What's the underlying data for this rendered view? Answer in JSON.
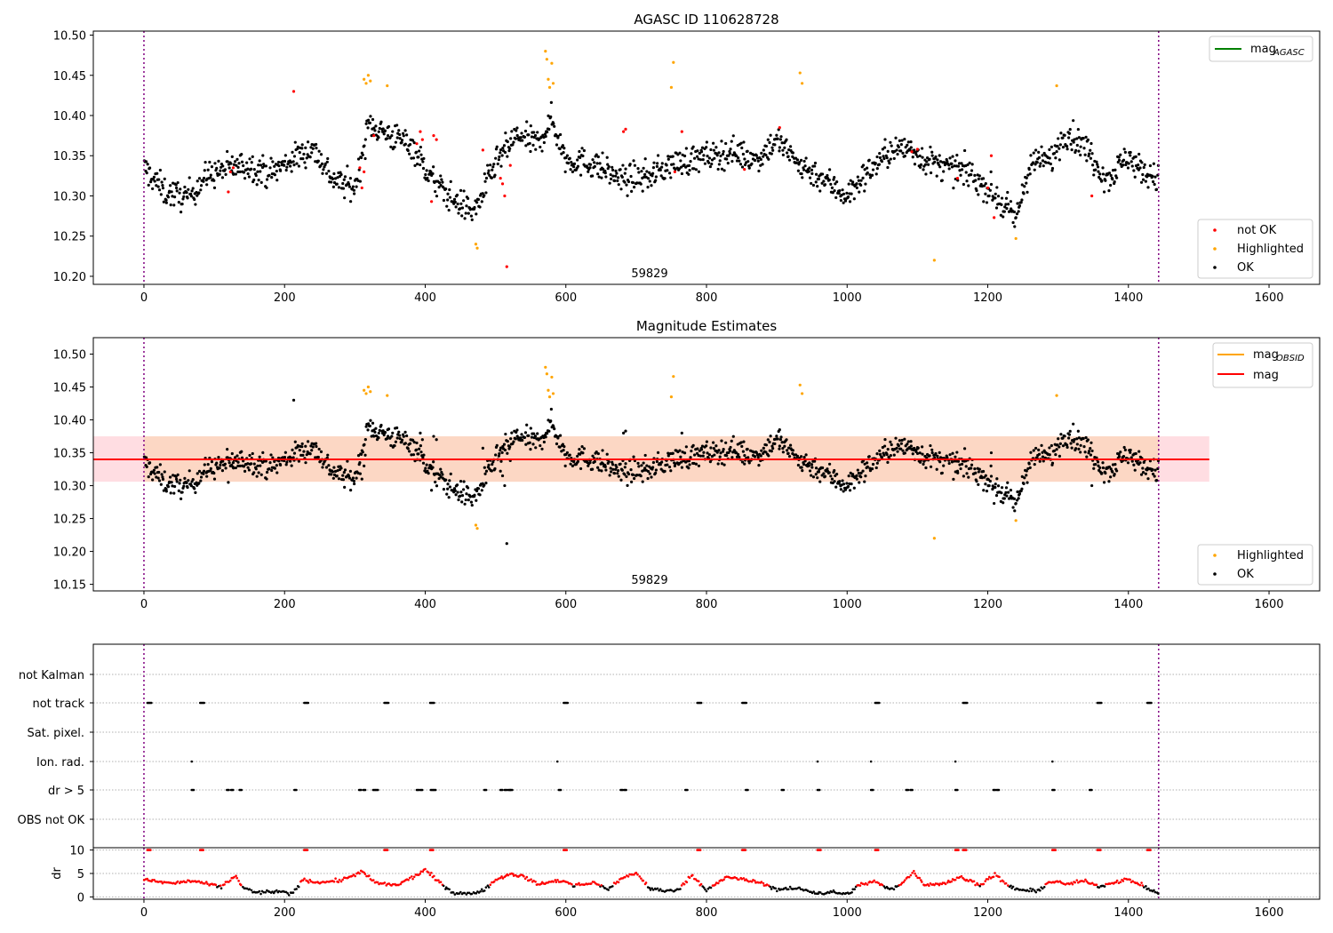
{
  "chart_data": [
    {
      "type": "scatter",
      "title": "AGASC ID 110628728",
      "annotation": "59829",
      "xlim": [
        -72,
        1672
      ],
      "ylim": [
        10.19,
        10.505
      ],
      "xticks": [
        0,
        200,
        400,
        600,
        800,
        1000,
        1200,
        1400,
        1600
      ],
      "yticks": [
        10.2,
        10.25,
        10.3,
        10.35,
        10.4,
        10.45,
        10.5
      ],
      "vlines": [
        0,
        1443
      ],
      "legend_lines": [
        {
          "label_main": "mag",
          "label_sub": "AGASC",
          "color": "#008000"
        }
      ],
      "legend_points": [
        {
          "label": "not OK",
          "color": "#ff0000"
        },
        {
          "label": "Highlighted",
          "color": "#ffa500"
        },
        {
          "label": "OK",
          "color": "#000000"
        }
      ],
      "n_points": 1443,
      "base_curve": [
        [
          0,
          10.335
        ],
        [
          30,
          10.305
        ],
        [
          60,
          10.298
        ],
        [
          90,
          10.325
        ],
        [
          120,
          10.335
        ],
        [
          150,
          10.338
        ],
        [
          180,
          10.328
        ],
        [
          210,
          10.345
        ],
        [
          240,
          10.36
        ],
        [
          270,
          10.32
        ],
        [
          300,
          10.31
        ],
        [
          320,
          10.39
        ],
        [
          350,
          10.375
        ],
        [
          380,
          10.365
        ],
        [
          410,
          10.32
        ],
        [
          440,
          10.295
        ],
        [
          470,
          10.28
        ],
        [
          500,
          10.34
        ],
        [
          530,
          10.375
        ],
        [
          560,
          10.365
        ],
        [
          580,
          10.395
        ],
        [
          600,
          10.345
        ],
        [
          640,
          10.34
        ],
        [
          680,
          10.32
        ],
        [
          720,
          10.325
        ],
        [
          750,
          10.34
        ],
        [
          780,
          10.345
        ],
        [
          810,
          10.35
        ],
        [
          840,
          10.355
        ],
        [
          870,
          10.345
        ],
        [
          900,
          10.37
        ],
        [
          930,
          10.34
        ],
        [
          960,
          10.325
        ],
        [
          1000,
          10.3
        ],
        [
          1030,
          10.33
        ],
        [
          1060,
          10.355
        ],
        [
          1090,
          10.36
        ],
        [
          1110,
          10.345
        ],
        [
          1140,
          10.335
        ],
        [
          1170,
          10.33
        ],
        [
          1200,
          10.31
        ],
        [
          1220,
          10.29
        ],
        [
          1240,
          10.27
        ],
        [
          1260,
          10.34
        ],
        [
          1290,
          10.345
        ],
        [
          1310,
          10.38
        ],
        [
          1340,
          10.36
        ],
        [
          1370,
          10.32
        ],
        [
          1400,
          10.35
        ],
        [
          1420,
          10.33
        ],
        [
          1443,
          10.32
        ]
      ],
      "highlighted_points": [
        [
          313,
          10.445
        ],
        [
          316,
          10.44
        ],
        [
          319,
          10.45
        ],
        [
          322,
          10.443
        ],
        [
          346,
          10.437
        ],
        [
          472,
          10.24
        ],
        [
          474,
          10.235
        ],
        [
          571,
          10.48
        ],
        [
          573,
          10.47
        ],
        [
          575,
          10.445
        ],
        [
          577,
          10.435
        ],
        [
          580,
          10.465
        ],
        [
          582,
          10.44
        ],
        [
          750,
          10.435
        ],
        [
          753,
          10.466
        ],
        [
          933,
          10.453
        ],
        [
          936,
          10.44
        ],
        [
          1124,
          10.22
        ],
        [
          1240,
          10.247
        ],
        [
          1298,
          10.437
        ]
      ],
      "notok_points": [
        [
          120,
          10.305
        ],
        [
          123,
          10.33
        ],
        [
          127,
          10.335
        ],
        [
          213,
          10.43
        ],
        [
          307,
          10.335
        ],
        [
          310,
          10.31
        ],
        [
          313,
          10.33
        ],
        [
          327,
          10.375
        ],
        [
          388,
          10.365
        ],
        [
          393,
          10.38
        ],
        [
          396,
          10.37
        ],
        [
          409,
          10.293
        ],
        [
          412,
          10.375
        ],
        [
          416,
          10.37
        ],
        [
          482,
          10.357
        ],
        [
          507,
          10.322
        ],
        [
          510,
          10.315
        ],
        [
          513,
          10.3
        ],
        [
          516,
          10.212
        ],
        [
          521,
          10.338
        ],
        [
          682,
          10.38
        ],
        [
          685,
          10.383
        ],
        [
          755,
          10.33
        ],
        [
          765,
          10.38
        ],
        [
          854,
          10.333
        ],
        [
          904,
          10.385
        ],
        [
          1092,
          10.355
        ],
        [
          1100,
          10.358
        ],
        [
          1157,
          10.322
        ],
        [
          1200,
          10.31
        ],
        [
          1205,
          10.35
        ],
        [
          1209,
          10.273
        ],
        [
          1348,
          10.3
        ]
      ]
    },
    {
      "type": "scatter",
      "title": "Magnitude Estimates",
      "annotation": "59829",
      "xlim": [
        -72,
        1672
      ],
      "ylim": [
        10.14,
        10.525
      ],
      "xticks": [
        0,
        200,
        400,
        600,
        800,
        1000,
        1200,
        1400,
        1600
      ],
      "yticks": [
        10.15,
        10.2,
        10.25,
        10.3,
        10.35,
        10.4,
        10.45,
        10.5
      ],
      "vlines": [
        0,
        1443
      ],
      "mag_line": 10.34,
      "band_outer": {
        "x": [
          -72,
          1515
        ],
        "y": [
          10.306,
          10.375
        ],
        "color": "#ffdde2"
      },
      "band_inner": {
        "x": [
          0,
          1443
        ],
        "y": [
          10.306,
          10.375
        ],
        "color": "#fcd7c4"
      },
      "legend_lines": [
        {
          "label_main": "mag",
          "label_sub": "OBSID",
          "color": "#ffa500"
        },
        {
          "label_main": "mag",
          "label_sub": "",
          "color": "#ff0000"
        }
      ],
      "legend_points": [
        {
          "label": "Highlighted",
          "color": "#ffa500"
        },
        {
          "label": "OK",
          "color": "#000000"
        }
      ]
    },
    {
      "type": "scatter",
      "title": "",
      "xlim": [
        -72,
        1672
      ],
      "xticks": [
        0,
        200,
        400,
        600,
        800,
        1000,
        1200,
        1400,
        1600
      ],
      "vlines": [
        0,
        1443
      ],
      "flag_labels": [
        "not Kalman",
        "not track",
        "Sat. pixel.",
        "Ion. rad.",
        "dr > 5",
        "OBS not OK"
      ],
      "flag_events": {
        "not Kalman": [],
        "not track": [
          5,
          80,
          228,
          342,
          407,
          597,
          787,
          851,
          1040,
          1165,
          1356,
          1427
        ],
        "Sat. pixel.": [],
        "Ion. rad.": [
          68,
          588,
          958,
          1034,
          1154,
          1292
        ],
        "dr > 5": [
          68,
          118,
          124,
          136,
          214,
          306,
          312,
          326,
          330,
          388,
          393,
          408,
          412,
          484,
          507,
          513,
          518,
          521,
          590,
          678,
          683,
          770,
          856,
          907,
          958,
          1034,
          1084,
          1090,
          1154,
          1208,
          1213,
          1292,
          1345
        ],
        "OBS not OK": []
      },
      "dr_ylim": [
        -0.5,
        10.5
      ],
      "dr_yticks": [
        0,
        5,
        10
      ],
      "dr_ylabel": "dr",
      "dr_cap": 10,
      "dr_cap_events": [
        5,
        80,
        228,
        342,
        407,
        597,
        787,
        851,
        958,
        1040,
        1154,
        1165,
        1292,
        1356,
        1427
      ],
      "dr_curve": [
        [
          0,
          3.8
        ],
        [
          20,
          3.2
        ],
        [
          40,
          2.9
        ],
        [
          70,
          3.4
        ],
        [
          90,
          2.7
        ],
        [
          110,
          2.1
        ],
        [
          130,
          4.6
        ],
        [
          140,
          2.0
        ],
        [
          160,
          0.9
        ],
        [
          190,
          1.2
        ],
        [
          210,
          0.5
        ],
        [
          225,
          3.6
        ],
        [
          250,
          3.1
        ],
        [
          280,
          3.5
        ],
        [
          310,
          5.4
        ],
        [
          330,
          2.9
        ],
        [
          360,
          2.5
        ],
        [
          385,
          4.4
        ],
        [
          400,
          5.8
        ],
        [
          420,
          3.1
        ],
        [
          440,
          0.9
        ],
        [
          460,
          0.6
        ],
        [
          480,
          1.2
        ],
        [
          500,
          3.6
        ],
        [
          520,
          5.0
        ],
        [
          540,
          4.3
        ],
        [
          560,
          2.7
        ],
        [
          580,
          3.2
        ],
        [
          595,
          3.5
        ],
        [
          610,
          2.4
        ],
        [
          640,
          3.0
        ],
        [
          660,
          1.7
        ],
        [
          680,
          4.0
        ],
        [
          700,
          5.1
        ],
        [
          720,
          1.8
        ],
        [
          740,
          1.2
        ],
        [
          760,
          1.6
        ],
        [
          780,
          4.7
        ],
        [
          800,
          1.4
        ],
        [
          830,
          4.3
        ],
        [
          855,
          3.6
        ],
        [
          880,
          2.9
        ],
        [
          900,
          1.6
        ],
        [
          930,
          1.8
        ],
        [
          960,
          0.8
        ],
        [
          980,
          1.0
        ],
        [
          1000,
          0.6
        ],
        [
          1020,
          2.7
        ],
        [
          1040,
          3.3
        ],
        [
          1060,
          1.5
        ],
        [
          1080,
          3.1
        ],
        [
          1095,
          5.4
        ],
        [
          1110,
          2.6
        ],
        [
          1140,
          2.9
        ],
        [
          1160,
          4.2
        ],
        [
          1190,
          2.6
        ],
        [
          1210,
          4.8
        ],
        [
          1230,
          2.2
        ],
        [
          1250,
          1.4
        ],
        [
          1270,
          1.2
        ],
        [
          1290,
          3.4
        ],
        [
          1310,
          2.7
        ],
        [
          1340,
          3.4
        ],
        [
          1360,
          2.2
        ],
        [
          1380,
          3.2
        ],
        [
          1400,
          3.7
        ],
        [
          1420,
          2.4
        ],
        [
          1443,
          0.6
        ]
      ]
    }
  ]
}
